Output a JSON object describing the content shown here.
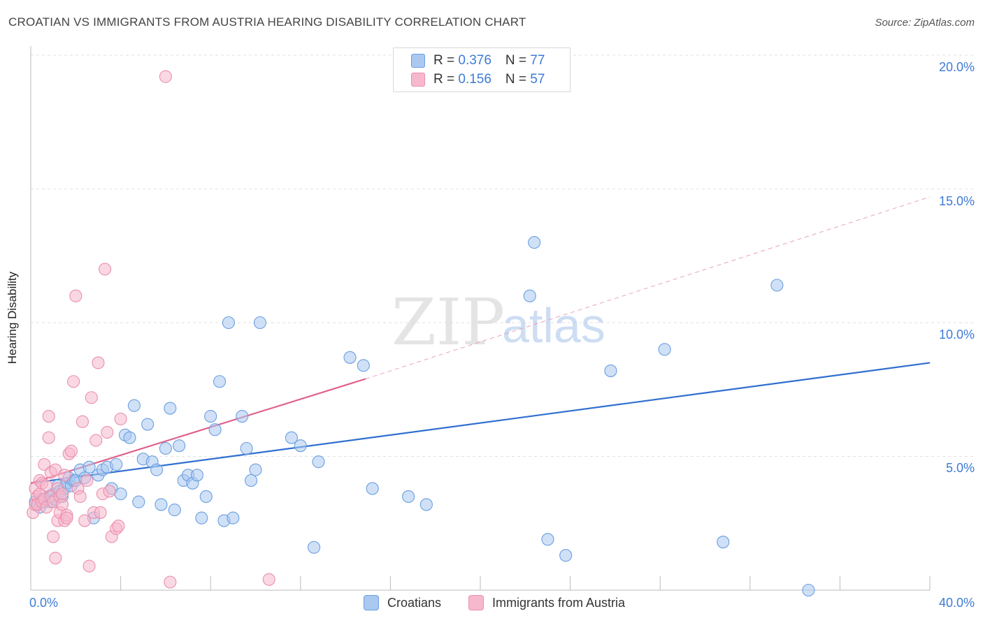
{
  "header": {
    "title": "CROATIAN VS IMMIGRANTS FROM AUSTRIA HEARING DISABILITY CORRELATION CHART",
    "source": "Source: ZipAtlas.com"
  },
  "legend": {
    "row1": {
      "r_label": "R = ",
      "r_value": "0.376",
      "n_label": "N = ",
      "n_value": "77"
    },
    "row2": {
      "r_label": "R = ",
      "r_value": "0.156",
      "n_label": "N = ",
      "n_value": "57"
    }
  },
  "bottom_legend": {
    "series1": "Croatians",
    "series2": "Immigrants from Austria"
  },
  "watermark": {
    "zip": "ZIP",
    "atlas": "atlas"
  },
  "colors": {
    "blue_fill": "#aac8f0",
    "blue_stroke": "#6a9fe0",
    "blue_line": "#2f6fd0",
    "pink_fill": "#f6b8cc",
    "pink_stroke": "#ea8fab",
    "pink_line": "#e0628d",
    "tick_text": "#3d7bd6"
  },
  "chart_data": {
    "type": "scatter",
    "title": "CROATIAN VS IMMIGRANTS FROM AUSTRIA HEARING DISABILITY CORRELATION CHART",
    "xlabel": "",
    "ylabel": "Hearing Disability",
    "xlim": [
      0,
      40
    ],
    "ylim": [
      0,
      20
    ],
    "x_tick_labels": [
      "0.0%",
      "40.0%"
    ],
    "y_ticks": [
      5,
      10,
      15,
      20
    ],
    "y_tick_labels": [
      "5.0%",
      "10.0%",
      "15.0%",
      "20.0%"
    ],
    "grid": "dashed horizontal",
    "legend_position": "top-center",
    "series": [
      {
        "name": "Croatians",
        "color": "#aac8f0",
        "trend": {
          "x": [
            0,
            40
          ],
          "y": [
            4.0,
            8.5
          ],
          "style": "solid"
        },
        "x": [
          0.2,
          0.3,
          0.4,
          0.5,
          0.6,
          0.7,
          0.8,
          0.9,
          1.0,
          1.1,
          1.2,
          1.3,
          1.4,
          1.5,
          1.6,
          1.7,
          1.8,
          1.9,
          2.0,
          2.2,
          2.4,
          2.6,
          2.8,
          3.0,
          3.2,
          3.4,
          3.6,
          3.8,
          4.0,
          4.2,
          4.4,
          4.6,
          4.8,
          5.0,
          5.2,
          5.4,
          5.6,
          5.8,
          6.0,
          6.2,
          6.4,
          6.6,
          6.8,
          7.0,
          7.2,
          7.4,
          7.6,
          7.8,
          8.0,
          8.2,
          8.4,
          8.6,
          8.8,
          9.0,
          9.4,
          9.6,
          9.8,
          10.0,
          10.2,
          11.6,
          12.0,
          12.6,
          12.8,
          14.2,
          14.8,
          15.2,
          16.8,
          17.6,
          22.2,
          22.4,
          23.0,
          23.8,
          25.8,
          28.2,
          30.8,
          33.2,
          34.6
        ],
        "y": [
          3.3,
          3.2,
          3.1,
          3.4,
          3.3,
          3.4,
          3.5,
          3.3,
          3.6,
          3.4,
          3.9,
          3.7,
          3.5,
          3.8,
          4.0,
          4.2,
          3.9,
          4.1,
          4.1,
          4.5,
          4.2,
          4.6,
          2.7,
          4.3,
          4.5,
          4.6,
          3.8,
          4.7,
          3.6,
          5.8,
          5.7,
          6.9,
          3.3,
          4.9,
          6.2,
          4.8,
          4.5,
          3.2,
          5.3,
          6.8,
          3.0,
          5.4,
          4.1,
          4.3,
          4.0,
          4.3,
          2.7,
          3.5,
          6.5,
          6.0,
          7.8,
          2.6,
          10.0,
          2.7,
          6.5,
          5.3,
          4.1,
          4.5,
          10.0,
          5.7,
          5.4,
          1.6,
          4.8,
          8.7,
          8.4,
          3.8,
          3.5,
          3.2,
          11.0,
          13.0,
          1.9,
          1.3,
          8.2,
          9.0,
          1.8,
          11.4,
          0.0
        ]
      },
      {
        "name": "Immigrants from Austria",
        "color": "#f6b8cc",
        "trend": {
          "x": [
            0,
            14.9
          ],
          "y": [
            4.0,
            7.9
          ],
          "style": "solid",
          "extension": {
            "x": [
              14.9,
              40
            ],
            "y": [
              7.9,
              14.7
            ],
            "style": "dashed"
          }
        },
        "x": [
          0.1,
          0.2,
          0.2,
          0.3,
          0.3,
          0.4,
          0.4,
          0.5,
          0.5,
          0.6,
          0.6,
          0.7,
          0.7,
          0.8,
          0.8,
          0.9,
          0.9,
          1.0,
          1.0,
          1.1,
          1.1,
          1.2,
          1.2,
          1.3,
          1.3,
          1.4,
          1.4,
          1.5,
          1.5,
          1.6,
          1.6,
          1.7,
          1.8,
          1.9,
          2.0,
          2.1,
          2.2,
          2.3,
          2.4,
          2.5,
          2.6,
          2.7,
          2.8,
          2.9,
          3.0,
          3.1,
          3.2,
          3.3,
          3.4,
          3.5,
          3.6,
          3.8,
          3.9,
          4.0,
          6.0,
          6.2,
          10.6
        ],
        "y": [
          2.9,
          3.2,
          3.8,
          3.5,
          3.2,
          4.1,
          3.6,
          4.0,
          3.3,
          4.7,
          3.4,
          3.9,
          3.1,
          6.5,
          5.7,
          3.5,
          4.4,
          2.0,
          3.3,
          1.2,
          4.5,
          2.6,
          3.8,
          2.9,
          3.5,
          3.6,
          3.2,
          2.6,
          4.3,
          2.8,
          2.7,
          5.1,
          5.2,
          7.8,
          11.0,
          3.8,
          3.5,
          6.3,
          2.6,
          4.1,
          0.9,
          7.2,
          2.9,
          5.6,
          8.5,
          2.9,
          3.6,
          12.0,
          5.9,
          3.7,
          2.0,
          2.3,
          2.4,
          6.4,
          19.2,
          0.3,
          0.4
        ]
      }
    ]
  }
}
